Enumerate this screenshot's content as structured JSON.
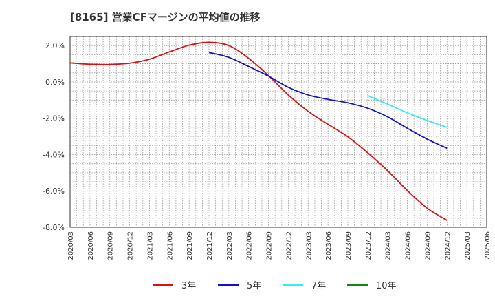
{
  "chart_data": {
    "type": "line",
    "title": "[8165]  営業CFマージンの平均値の推移",
    "xlabel": "",
    "ylabel": "",
    "ylim": [
      -8.0,
      2.5
    ],
    "grid": true,
    "legend_position": "bottom",
    "x_ticks": [
      "2020/03",
      "2020/06",
      "2020/09",
      "2020/12",
      "2021/03",
      "2021/06",
      "2021/09",
      "2021/12",
      "2022/03",
      "2022/06",
      "2022/09",
      "2022/12",
      "2023/03",
      "2023/06",
      "2023/09",
      "2023/12",
      "2024/03",
      "2024/06",
      "2024/09",
      "2024/12",
      "2025/03",
      "2025/06"
    ],
    "y_ticks": [
      {
        "value": 2.0,
        "label": "2.0%"
      },
      {
        "value": 0.0,
        "label": "0.0%"
      },
      {
        "value": -2.0,
        "label": "-2.0%"
      },
      {
        "value": -4.0,
        "label": "-4.0%"
      },
      {
        "value": -6.0,
        "label": "-6.0%"
      },
      {
        "value": -8.0,
        "label": "-8.0%"
      }
    ],
    "series": [
      {
        "name": "3年",
        "color": "#dd1111",
        "x": [
          "2020/03",
          "2020/06",
          "2020/09",
          "2020/12",
          "2021/03",
          "2021/06",
          "2021/09",
          "2021/12",
          "2022/03",
          "2022/06",
          "2022/09",
          "2022/12",
          "2023/03",
          "2023/06",
          "2023/09",
          "2023/12",
          "2024/03",
          "2024/06",
          "2024/09",
          "2024/12"
        ],
        "values": [
          1.05,
          0.97,
          0.96,
          1.03,
          1.25,
          1.65,
          2.02,
          2.18,
          2.0,
          1.3,
          0.35,
          -0.72,
          -1.62,
          -2.33,
          -3.02,
          -3.9,
          -4.88,
          -5.98,
          -6.95,
          -7.62
        ]
      },
      {
        "name": "5年",
        "color": "#1111cc",
        "x": [
          "2021/12",
          "2022/03",
          "2022/06",
          "2022/09",
          "2022/12",
          "2023/03",
          "2023/06",
          "2023/09",
          "2023/12",
          "2024/03",
          "2024/06",
          "2024/09",
          "2024/12"
        ],
        "values": [
          1.62,
          1.35,
          0.85,
          0.32,
          -0.3,
          -0.72,
          -0.96,
          -1.15,
          -1.45,
          -1.92,
          -2.55,
          -3.15,
          -3.65
        ]
      },
      {
        "name": "7年",
        "color": "#33eeee",
        "x": [
          "2023/12",
          "2024/03",
          "2024/06",
          "2024/09",
          "2024/12"
        ],
        "values": [
          -0.75,
          -1.22,
          -1.7,
          -2.12,
          -2.5
        ]
      },
      {
        "name": "10年",
        "color": "#118811",
        "x": [],
        "values": []
      }
    ]
  }
}
